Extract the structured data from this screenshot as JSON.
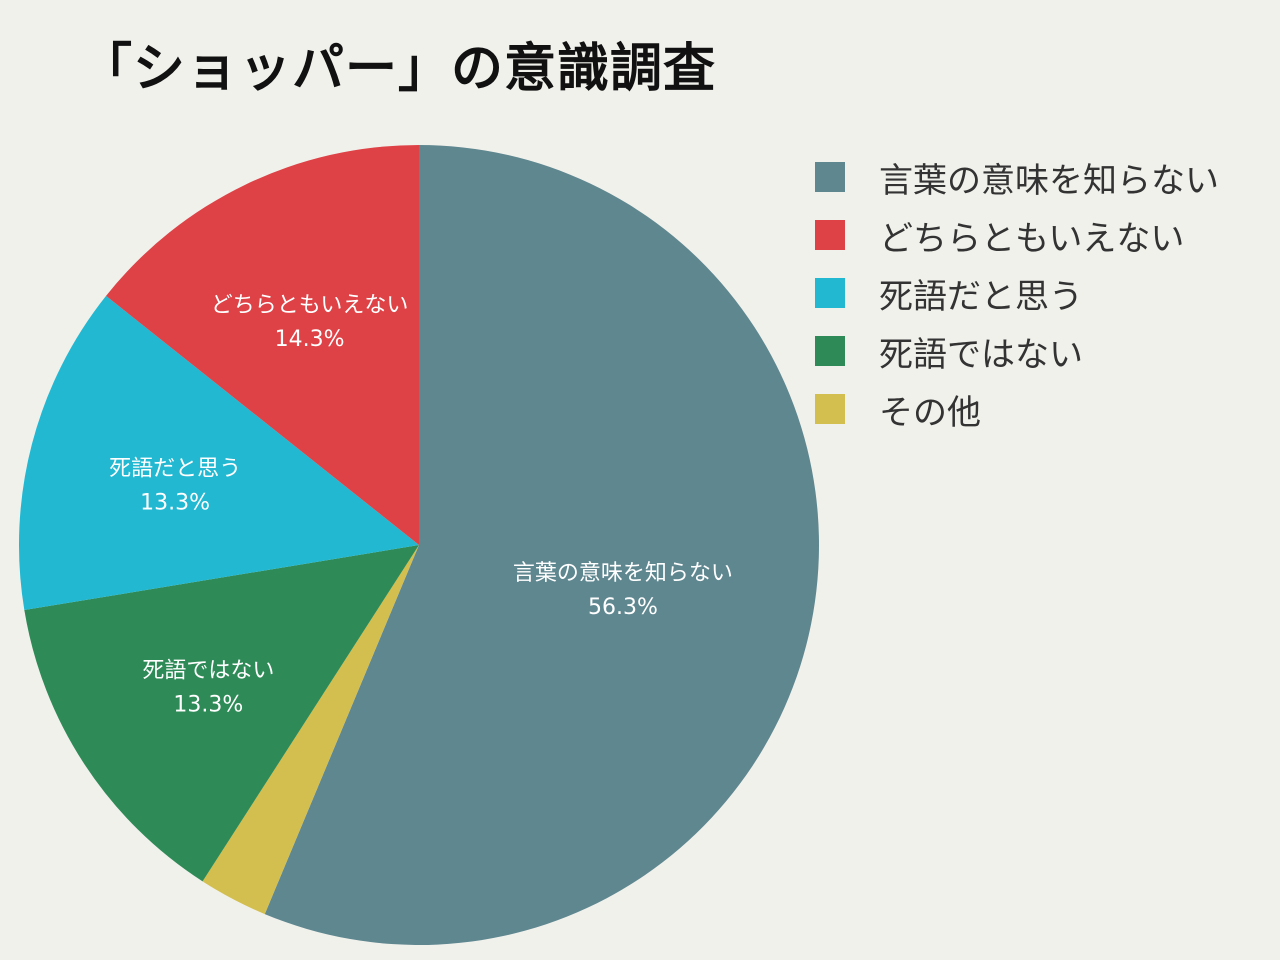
{
  "chart_data": {
    "type": "pie",
    "title": "「ショッパー」の意識調査",
    "legend_position": "right",
    "slices": [
      {
        "label": "言葉の意味を知らない",
        "value": 56.3,
        "value_label": "56.3%",
        "color": "#5f8790"
      },
      {
        "label": "その他",
        "value": 2.8,
        "value_label": "",
        "color": "#d3bf4f"
      },
      {
        "label": "死語ではない",
        "value": 13.3,
        "value_label": "13.3%",
        "color": "#2e8b57"
      },
      {
        "label": "死語だと思う",
        "value": 13.3,
        "value_label": "13.3%",
        "color": "#22b8d1"
      },
      {
        "label": "どちらともいえない",
        "value": 14.3,
        "value_label": "14.3%",
        "color": "#de4246"
      }
    ],
    "legend": [
      {
        "label": "言葉の意味を知らない",
        "color": "#5f8790"
      },
      {
        "label": "どちらともいえない",
        "color": "#de4246"
      },
      {
        "label": "死語だと思う",
        "color": "#22b8d1"
      },
      {
        "label": "死語ではない",
        "color": "#2e8b57"
      },
      {
        "label": "その他",
        "color": "#d3bf4f"
      }
    ]
  }
}
